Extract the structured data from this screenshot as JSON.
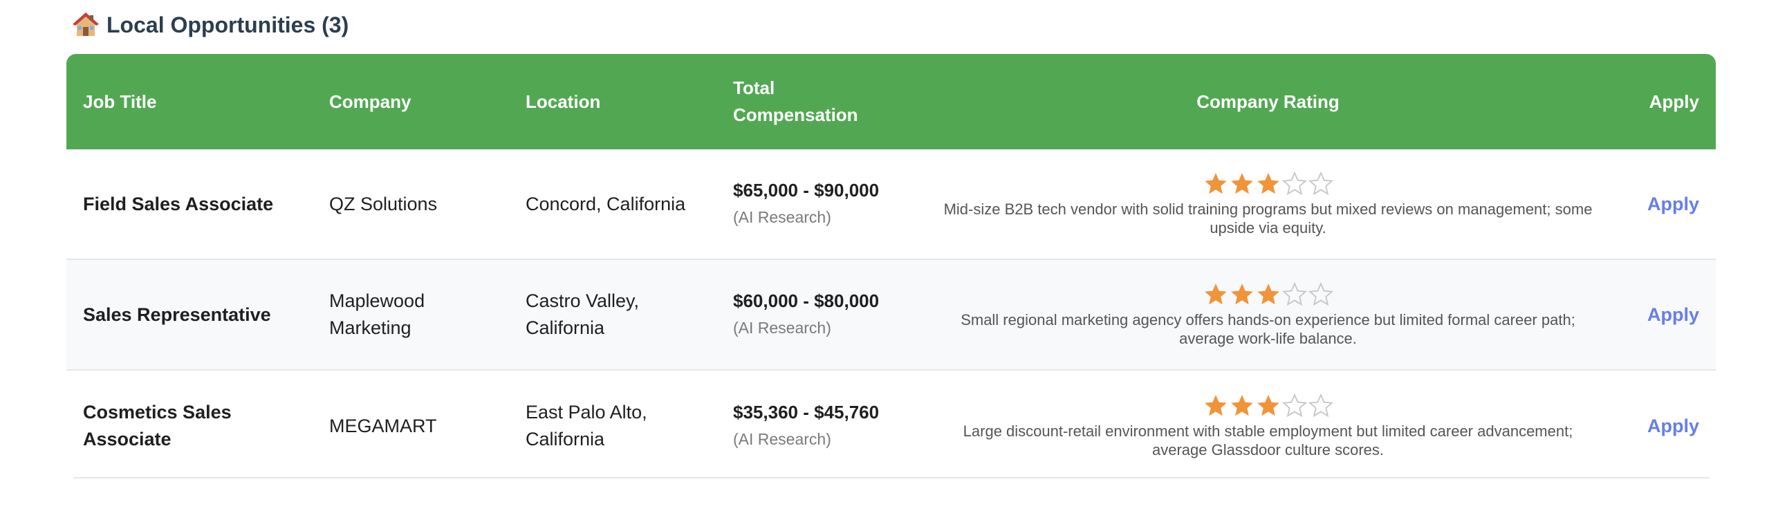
{
  "section": {
    "icon": "house-icon",
    "title": "Local Opportunities (3)"
  },
  "colors": {
    "header_bg": "#52a852",
    "star_filled": "#f0943a",
    "star_empty": "#c8c8c8",
    "apply_link": "#667eea"
  },
  "table": {
    "headers": {
      "job_title": "Job Title",
      "company": "Company",
      "location": "Location",
      "compensation": "Total Compensation",
      "rating": "Company Rating",
      "apply": "Apply"
    },
    "rows": [
      {
        "title": "Field Sales Associate",
        "company": "QZ Solutions",
        "location": "Concord, California",
        "compensation": "$65,000 - $90,000",
        "comp_source": "(AI Research)",
        "rating_stars": 3,
        "rating_max": 5,
        "rating_desc": "Mid-size B2B tech vendor with solid training programs but mixed reviews on management; some upside via equity.",
        "apply_label": "Apply"
      },
      {
        "title": "Sales Representative",
        "company": "Maplewood Marketing",
        "location": "Castro Valley, California",
        "compensation": "$60,000 - $80,000",
        "comp_source": "(AI Research)",
        "rating_stars": 3,
        "rating_max": 5,
        "rating_desc": "Small regional marketing agency offers hands-on experience but limited formal career path; average work-life balance.",
        "apply_label": "Apply"
      },
      {
        "title": "Cosmetics Sales Associate",
        "company": "MEGAMART",
        "location": "East Palo Alto, California",
        "compensation": "$35,360 - $45,760",
        "comp_source": "(AI Research)",
        "rating_stars": 3,
        "rating_max": 5,
        "rating_desc": "Large discount-retail environment with stable employment but limited career advancement; average Glassdoor culture scores.",
        "apply_label": "Apply"
      }
    ]
  }
}
